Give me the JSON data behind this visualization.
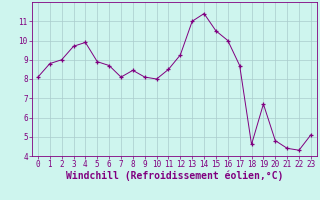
{
  "x": [
    0,
    1,
    2,
    3,
    4,
    5,
    6,
    7,
    8,
    9,
    10,
    11,
    12,
    13,
    14,
    15,
    16,
    17,
    18,
    19,
    20,
    21,
    22,
    23
  ],
  "y": [
    8.1,
    8.8,
    9.0,
    9.7,
    9.9,
    8.9,
    8.7,
    8.1,
    8.45,
    8.1,
    8.0,
    8.5,
    9.25,
    11.0,
    11.4,
    10.5,
    10.0,
    8.7,
    4.6,
    6.7,
    4.8,
    4.4,
    4.3,
    5.1
  ],
  "line_color": "#800080",
  "marker": "+",
  "marker_color": "#800080",
  "bg_color": "#cef5ee",
  "grid_color": "#aacccc",
  "xlabel": "Windchill (Refroidissement éolien,°C)",
  "xlabel_color": "#800080",
  "ylim": [
    4,
    12
  ],
  "xlim": [
    -0.5,
    23.5
  ],
  "yticks": [
    4,
    5,
    6,
    7,
    8,
    9,
    10,
    11
  ],
  "xticks": [
    0,
    1,
    2,
    3,
    4,
    5,
    6,
    7,
    8,
    9,
    10,
    11,
    12,
    13,
    14,
    15,
    16,
    17,
    18,
    19,
    20,
    21,
    22,
    23
  ],
  "tick_fontsize": 5.5,
  "xlabel_fontsize": 7.0,
  "tick_color": "#800080",
  "spine_color": "#800080"
}
